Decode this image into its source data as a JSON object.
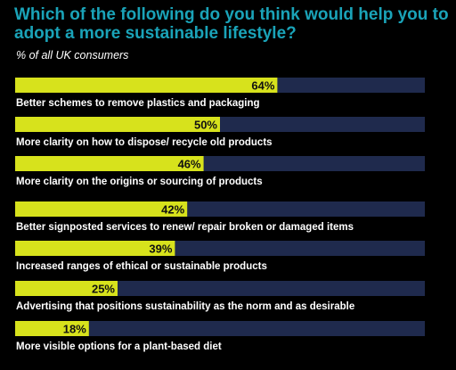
{
  "title": "Which of the following do you think would help you to adopt a more sustainable lifestyle?",
  "subtitle": "% of all UK consumers",
  "colors": {
    "bar": "#d7e21c",
    "track": "#1f2a4d",
    "title": "#1aa3b8",
    "text": "#ffffff"
  },
  "chart_data": {
    "type": "bar",
    "orientation": "horizontal",
    "title": "Which of the following do you think would help you to adopt a more sustainable lifestyle?",
    "subtitle": "% of all UK consumers",
    "categories": [
      "Better schemes to remove plastics and packaging",
      "More clarity on how to dispose/ recycle old products",
      "More clarity on the origins or sourcing of products",
      "Better signposted services to renew/ repair broken or damaged items",
      "Increased ranges of ethical or sustainable products",
      "Advertising that positions sustainability as the norm and as desirable",
      "More visible options for a plant-based diet"
    ],
    "values": [
      64,
      50,
      46,
      42,
      39,
      25,
      18
    ],
    "value_labels": [
      "64%",
      "50%",
      "46%",
      "42%",
      "39%",
      "25%",
      "18%"
    ],
    "xlim": [
      0,
      100
    ],
    "grid": false,
    "legend": "none"
  }
}
